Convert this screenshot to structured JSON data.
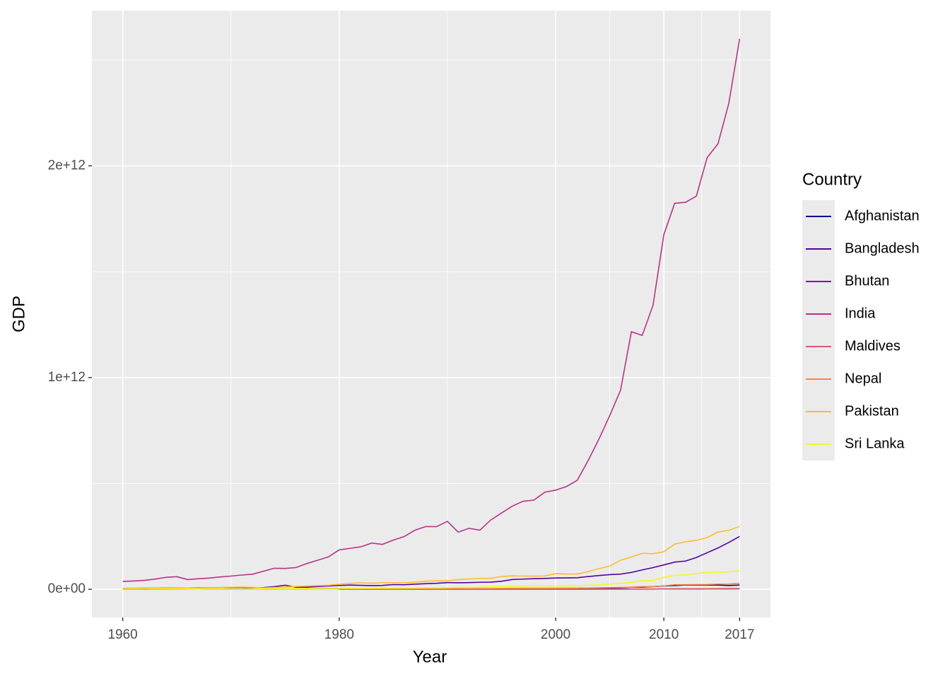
{
  "chart_data": {
    "type": "line",
    "x_label": "Year",
    "y_label": "GDP",
    "legend_title": "Country",
    "legend_position": "right",
    "grid": true,
    "xlim": [
      1957.15,
      2019.85
    ],
    "ylim": [
      -133000000000.0,
      2733000000000.0
    ],
    "xticks": [
      1960,
      1980,
      2000,
      2010,
      2017
    ],
    "xminor_ticks": [
      1970,
      1990,
      2005,
      2013.5
    ],
    "yticks": [
      {
        "value": 0,
        "label": "0e+00"
      },
      {
        "value": 1000000000000.0,
        "label": "1e+12"
      },
      {
        "value": 2000000000000.0,
        "label": "2e+12"
      }
    ],
    "yminor_ticks": [
      500000000000.0,
      1500000000000.0,
      2500000000000.0
    ],
    "x": [
      1960,
      1961,
      1962,
      1963,
      1964,
      1965,
      1966,
      1967,
      1968,
      1969,
      1970,
      1971,
      1972,
      1973,
      1974,
      1975,
      1976,
      1977,
      1978,
      1979,
      1980,
      1981,
      1982,
      1983,
      1984,
      1985,
      1986,
      1987,
      1988,
      1989,
      1990,
      1991,
      1992,
      1993,
      1994,
      1995,
      1996,
      1997,
      1998,
      1999,
      2000,
      2001,
      2002,
      2003,
      2004,
      2005,
      2006,
      2007,
      2008,
      2009,
      2010,
      2011,
      2012,
      2013,
      2014,
      2015,
      2016,
      2017
    ],
    "series": [
      {
        "name": "Afghanistan",
        "color": "#0D0887",
        "values": [
          540000000.0,
          550000000.0,
          550000000.0,
          750000000.0,
          800000000.0,
          1000000000.0,
          1400000000.0,
          1700000000.0,
          1400000000.0,
          1400000000.0,
          1700000000.0,
          1800000000.0,
          1600000000.0,
          1700000000.0,
          2200000000.0,
          2400000000.0,
          2600000000.0,
          2900000000.0,
          3300000000.0,
          3700000000.0,
          3600000000.0,
          3500000000.0,
          null,
          null,
          null,
          null,
          null,
          null,
          null,
          null,
          null,
          null,
          null,
          null,
          null,
          null,
          null,
          null,
          null,
          null,
          null,
          null,
          4100000000.0,
          4600000000.0,
          5300000000.0,
          6300000000.0,
          7100000000.0,
          9800000000.0,
          10100000000.0,
          12400000000.0,
          15900000000.0,
          17800000000.0,
          20500000000.0,
          20000000000.0,
          20600000000.0,
          20000000000.0,
          18000000000.0,
          20200000000.0
        ]
      },
      {
        "name": "Bangladesh",
        "color": "#5402A3",
        "values": [
          4300000000.0,
          4600000000.0,
          5100000000.0,
          5100000000.0,
          5600000000.0,
          5900000000.0,
          6400000000.0,
          7100000000.0,
          7300000000.0,
          8000000000.0,
          8900000000.0,
          8900000000.0,
          6300000000.0,
          8100000000.0,
          12500000000.0,
          19400000000.0,
          10100000000.0,
          9700000000.0,
          13300000000.0,
          15600000000.0,
          18100000000.0,
          20200000000.0,
          18800000000.0,
          17600000000.0,
          18400000000.0,
          22300000000.0,
          21800000000.0,
          24100000000.0,
          26600000000.0,
          28300000000.0,
          31600000000.0,
          30900000000.0,
          31700000000.0,
          33200000000.0,
          33800000000.0,
          37900000000.0,
          46400000000.0,
          48200000000.0,
          49980000000.0,
          51300000000.0,
          53400000000.0,
          53990000000.0,
          54700000000.0,
          60200000000.0,
          65100000000.0,
          69400000000.0,
          71800000000.0,
          79600000000.0,
          91600000000.0,
          102500000000.0,
          115300000000.0,
          128600000000.0,
          133400000000.0,
          149990000000.0,
          172900000000.0,
          195100000000.0,
          221400000000.0,
          249700000000.0
        ]
      },
      {
        "name": "Bhutan",
        "color": "#8B0AA5",
        "values": [
          null,
          null,
          null,
          null,
          null,
          null,
          null,
          null,
          null,
          null,
          null,
          null,
          null,
          null,
          null,
          null,
          null,
          null,
          null,
          null,
          140000000.0,
          150000000.0,
          160000000.0,
          180000000.0,
          200000000.0,
          230000000.0,
          240000000.0,
          300000000.0,
          320000000.0,
          310000000.0,
          300000000.0,
          250000000.0,
          240000000.0,
          240000000.0,
          280000000.0,
          300000000.0,
          320000000.0,
          360000000.0,
          380000000.0,
          410000000.0,
          440000000.0,
          470000000.0,
          540000000.0,
          620000000.0,
          700000000.0,
          800000000.0,
          900000000.0,
          1200000000.0,
          1300000000.0,
          1300000000.0,
          1600000000.0,
          1800000000.0,
          1800000000.0,
          1800000000.0,
          2000000000.0,
          2100000000.0,
          2200000000.0,
          2500000000.0
        ]
      },
      {
        "name": "India",
        "color": "#B93289",
        "values": [
          37000000000.0,
          39200000000.0,
          42200000000.0,
          48400000000.0,
          56500000000.0,
          59600000000.0,
          45900000000.0,
          50100000000.0,
          53100000000.0,
          58400000000.0,
          62400000000.0,
          67400000000.0,
          71500000000.0,
          85500000000.0,
          99500000000.0,
          98500000000.0,
          102700000000.0,
          121500000000.0,
          137300000000.0,
          152990000000.0,
          186300000000.0,
          193500000000.0,
          200700000000.0,
          218300000000.0,
          212200000000.0,
          232500000000.0,
          248900000000.0,
          279000000000.0,
          296600000000.0,
          296000000000.0,
          320980000000.0,
          270100000000.0,
          288200000000.0,
          279300000000.0,
          327300000000.0,
          360300000000.0,
          392900000000.0,
          415900000000.0,
          421400000000.0,
          458800000000.0,
          468400000000.0,
          485400000000.0,
          514900000000.0,
          607700000000.0,
          709100000000.0,
          820400000000.0,
          940300000000.0,
          1216700000000.0,
          1198900000000.0,
          1341900000000.0,
          1675600000000.0,
          1823100000000.0,
          1827600000000.0,
          1856700000000.0,
          2039100000000.0,
          2103600000000.0,
          2294800000000.0,
          2600000000000.0
        ]
      },
      {
        "name": "Maldives",
        "color": "#DB5C68",
        "values": [
          null,
          null,
          null,
          null,
          null,
          null,
          null,
          null,
          null,
          null,
          null,
          null,
          null,
          null,
          null,
          null,
          null,
          null,
          null,
          null,
          40000000.0,
          50000000.0,
          60000000.0,
          70000000.0,
          80000000.0,
          90000000.0,
          100000000.0,
          100000000.0,
          120000000.0,
          130000000.0,
          150000000.0,
          170000000.0,
          190000000.0,
          210000000.0,
          240000000.0,
          270000000.0,
          300000000.0,
          340000000.0,
          360000000.0,
          390000000.0,
          620000000.0,
          600000000.0,
          600000000.0,
          650000000.0,
          730000000.0,
          720000000.0,
          880000000.0,
          1000000000.0,
          1100000000.0,
          1100000000.0,
          2100000000.0,
          2400000000.0,
          2400000000.0,
          2700000000.0,
          3000000000.0,
          3400000000.0,
          3600000000.0,
          3900000000.0
        ]
      },
      {
        "name": "Nepal",
        "color": "#F48849",
        "values": [
          500000000.0,
          500000000.0,
          600000000.0,
          600000000.0,
          600000000.0,
          700000000.0,
          900000000.0,
          1000000000.0,
          800000000.0,
          900000000.0,
          900000000.0,
          900000000.0,
          1000000000.0,
          1100000000.0,
          1300000000.0,
          1500000000.0,
          1500000000.0,
          1500000000.0,
          1800000000.0,
          2000000000.0,
          2000000000.0,
          2500000000.0,
          2600000000.0,
          2600000000.0,
          2600000000.0,
          2600000000.0,
          2600000000.0,
          2900000000.0,
          3300000000.0,
          3300000000.0,
          3600000000.0,
          3900000000.0,
          3400000000.0,
          3700000000.0,
          4000000000.0,
          4400000000.0,
          4500000000.0,
          4900000000.0,
          4900000000.0,
          5000000000.0,
          5500000000.0,
          6000000000.0,
          6050000000.0,
          6300000000.0,
          7300000000.0,
          8100000000.0,
          9000000000.0,
          10300000000.0,
          12500000000.0,
          12900000000.0,
          16000000000.0,
          21600000000.0,
          21700000000.0,
          22200000000.0,
          22700000000.0,
          24400000000.0,
          24500000000.0,
          28800000000.0
        ]
      },
      {
        "name": "Pakistan",
        "color": "#FEBC2A",
        "values": [
          3700000000.0,
          4100000000.0,
          4300000000.0,
          4700000000.0,
          5200000000.0,
          5800000000.0,
          6400000000.0,
          6900000000.0,
          7400000000.0,
          8000000000.0,
          10000000000.0,
          10600000000.0,
          9300000000.0,
          6300000000.0,
          8800000000.0,
          11300000000.0,
          13300000000.0,
          15000000000.0,
          17400000000.0,
          19100000000.0,
          23700000000.0,
          28000000000.0,
          30700000000.0,
          28700000000.0,
          31200000000.0,
          31100000000.0,
          31900000000.0,
          33300000000.0,
          38500000000.0,
          40200000000.0,
          40000000000.0,
          45500000000.0,
          48600000000.0,
          51500000000.0,
          51900000000.0,
          60600000000.0,
          63300000000.0,
          62400000000.0,
          62200000000.0,
          62970000000.0,
          73950000000.0,
          72300000000.0,
          72300000000.0,
          83200000000.0,
          97980000000.0,
          109500000000.0,
          137300000000.0,
          152400000000.0,
          170100000000.0,
          168200000000.0,
          177400000000.0,
          213600000000.0,
          224400000000.0,
          231200000000.0,
          244400000000.0,
          270600000000.0,
          278700000000.0,
          297000000000.0
        ]
      },
      {
        "name": "Sri Lanka",
        "color": "#F0F921",
        "values": [
          1400000000.0,
          1500000000.0,
          1500000000.0,
          1500000000.0,
          1600000000.0,
          1700000000.0,
          1800000000.0,
          1800000000.0,
          2300000000.0,
          2400000000.0,
          2300000000.0,
          2400000000.0,
          2600000000.0,
          2900000000.0,
          3600000000.0,
          3900000000.0,
          3800000000.0,
          4100000000.0,
          2700000000.0,
          3400000000.0,
          4000000000.0,
          4400000000.0,
          4800000000.0,
          5200000000.0,
          6000000000.0,
          5980000000.0,
          6400000000.0,
          6700000000.0,
          6980000000.0,
          7000000000.0,
          8000000000.0,
          9000000000.0,
          9700000000.0,
          10300000000.0,
          11700000000.0,
          13000000000.0,
          13900000000.0,
          15100000000.0,
          15800000000.0,
          15700000000.0,
          16300000000.0,
          15700000000.0,
          16500000000.0,
          18900000000.0,
          20700000000.0,
          24400000000.0,
          28300000000.0,
          32400000000.0,
          40700000000.0,
          42100000000.0,
          56700000000.0,
          65300000000.0,
          68400000000.0,
          74300000000.0,
          79400000000.0,
          80600000000.0,
          82400000000.0,
          88000000000.0
        ]
      }
    ]
  }
}
